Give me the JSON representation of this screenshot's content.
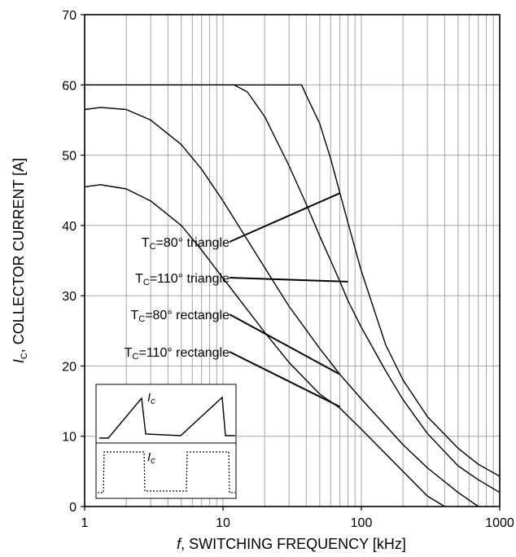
{
  "chart_data": {
    "type": "line",
    "xlabel": {
      "italic": "f",
      "rest": ", SWITCHING FREQUENCY [kHz]"
    },
    "ylabel": {
      "italic": "I",
      "sub": "C",
      "rest": ", COLLECTOR CURRENT [A]"
    },
    "x_scale": "log",
    "xlim": [
      1,
      1000
    ],
    "ylim": [
      0,
      70
    ],
    "x_ticks": [
      1,
      10,
      100,
      1000
    ],
    "x_tick_labels": [
      "1",
      "10",
      "100",
      "1000"
    ],
    "y_ticks": [
      0,
      10,
      20,
      30,
      40,
      50,
      60,
      70
    ],
    "y_tick_labels": [
      "0",
      "10",
      "20",
      "30",
      "40",
      "50",
      "60",
      "70"
    ],
    "grid": true,
    "series": [
      {
        "name": "TC=80° triangle",
        "x": [
          1,
          10,
          20,
          30,
          37,
          40,
          50,
          60,
          70,
          80,
          100,
          150,
          200,
          300,
          500,
          700,
          1000
        ],
        "y": [
          60,
          60,
          60,
          60,
          60,
          58.5,
          54.5,
          49.5,
          44.6,
          40.4,
          33.5,
          23,
          18,
          12.8,
          8.3,
          6,
          4.3
        ]
      },
      {
        "name": "TC=110° triangle",
        "x": [
          1,
          10,
          12,
          15,
          20,
          30,
          40,
          50,
          60,
          70,
          80,
          100,
          150,
          200,
          300,
          500,
          700,
          1000
        ],
        "y": [
          60,
          60,
          60,
          59,
          55.5,
          48.5,
          43,
          38.5,
          35,
          32,
          29.3,
          25.5,
          19.3,
          15.2,
          10.4,
          5.8,
          3.8,
          2
        ]
      },
      {
        "name": "TC=80° rectangle",
        "x": [
          1,
          1.3,
          2,
          3,
          5,
          7,
          10,
          20,
          30,
          50,
          70,
          100,
          200,
          300,
          500,
          700
        ],
        "y": [
          56.5,
          56.8,
          56.5,
          55,
          51.5,
          48,
          43.5,
          34,
          28.5,
          22.5,
          18.8,
          15.3,
          8.8,
          5.5,
          2,
          0
        ]
      },
      {
        "name": "TC=110° rectangle",
        "x": [
          1,
          1.3,
          2,
          3,
          5,
          7,
          10,
          20,
          30,
          50,
          70,
          100,
          200,
          300,
          400
        ],
        "y": [
          45.5,
          45.8,
          45.2,
          43.5,
          40,
          36.5,
          32.5,
          24.8,
          20.5,
          16,
          14,
          11,
          5,
          1.5,
          0
        ]
      }
    ],
    "annotations": [
      {
        "pre": "T",
        "sub": "C",
        "post": "=80° triangle",
        "target_x": 70,
        "target_y": 44.6
      },
      {
        "pre": "T",
        "sub": "C",
        "post": "=110° triangle",
        "target_x": 80,
        "target_y": 32
      },
      {
        "pre": "T",
        "sub": "C",
        "post": "=80° rectangle",
        "target_x": 70,
        "target_y": 18.8
      },
      {
        "pre": "T",
        "sub": "C",
        "post": "=110° rectangle",
        "target_x": 70,
        "target_y": 14.2
      }
    ],
    "inset": {
      "top_label": {
        "italic": "I",
        "sub": "c"
      },
      "bottom_label": {
        "italic": "I",
        "sub": "c"
      }
    }
  }
}
